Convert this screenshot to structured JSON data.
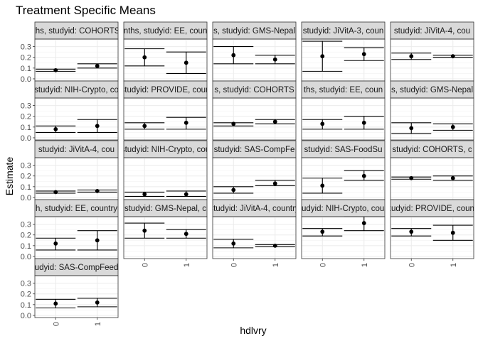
{
  "chart_data": {
    "type": "scatter",
    "title": "Treatment Specific Means",
    "xlabel": "hdlvry",
    "ylabel": "Estimate",
    "x_categories": [
      "0",
      "1"
    ],
    "y_ticks": [
      "0.0",
      "0.1",
      "0.2",
      "0.3"
    ],
    "ylim": [
      -0.02,
      0.37
    ],
    "grid": true,
    "panels": [
      {
        "strip": "ths, studyid: COHORTS",
        "points": [
          {
            "x": "0",
            "est": 0.08,
            "lo": 0.07,
            "hi": 0.09
          },
          {
            "x": "1",
            "est": 0.12,
            "lo": 0.1,
            "hi": 0.14
          }
        ]
      },
      {
        "strip": "nths, studyid: EE, coun",
        "points": [
          {
            "x": "0",
            "est": 0.2,
            "lo": 0.12,
            "hi": 0.28
          },
          {
            "x": "1",
            "est": 0.15,
            "lo": 0.05,
            "hi": 0.25
          }
        ]
      },
      {
        "strip": "s, studyid: GMS-Nepal",
        "points": [
          {
            "x": "0",
            "est": 0.22,
            "lo": 0.14,
            "hi": 0.3
          },
          {
            "x": "1",
            "est": 0.18,
            "lo": 0.14,
            "hi": 0.22
          }
        ]
      },
      {
        "strip": "studyid: JiVitA-3, coun",
        "points": [
          {
            "x": "0",
            "est": 0.21,
            "lo": 0.07,
            "hi": 0.35
          },
          {
            "x": "1",
            "est": 0.23,
            "lo": 0.17,
            "hi": 0.29
          }
        ]
      },
      {
        "strip": "studyid: JiVitA-4, cou",
        "points": [
          {
            "x": "0",
            "est": 0.21,
            "lo": 0.18,
            "hi": 0.24
          },
          {
            "x": "1",
            "est": 0.21,
            "lo": 0.2,
            "hi": 0.22
          }
        ]
      },
      {
        "strip": "studyid: NIH-Crypto, co",
        "points": [
          {
            "x": "0",
            "est": 0.08,
            "lo": 0.05,
            "hi": 0.11
          },
          {
            "x": "1",
            "est": 0.11,
            "lo": 0.05,
            "hi": 0.17
          }
        ]
      },
      {
        "strip": "studyid: PROVIDE, coun",
        "points": [
          {
            "x": "0",
            "est": 0.11,
            "lo": 0.08,
            "hi": 0.14
          },
          {
            "x": "1",
            "est": 0.14,
            "lo": 0.08,
            "hi": 0.19
          }
        ]
      },
      {
        "strip": "s, studyid: COHORTS",
        "points": [
          {
            "x": "0",
            "est": 0.13,
            "lo": 0.11,
            "hi": 0.14
          },
          {
            "x": "1",
            "est": 0.15,
            "lo": 0.13,
            "hi": 0.17
          }
        ]
      },
      {
        "strip": "ths, studyid: EE, coun",
        "points": [
          {
            "x": "0",
            "est": 0.13,
            "lo": 0.08,
            "hi": 0.17
          },
          {
            "x": "1",
            "est": 0.14,
            "lo": 0.08,
            "hi": 0.2
          }
        ]
      },
      {
        "strip": "s, studyid: GMS-Nepal",
        "points": [
          {
            "x": "0",
            "est": 0.09,
            "lo": 0.04,
            "hi": 0.14
          },
          {
            "x": "1",
            "est": 0.1,
            "lo": 0.07,
            "hi": 0.13
          }
        ]
      },
      {
        "strip": "studyid: JiVitA-4, cou",
        "points": [
          {
            "x": "0",
            "est": 0.05,
            "lo": 0.04,
            "hi": 0.06
          },
          {
            "x": "1",
            "est": 0.06,
            "lo": 0.05,
            "hi": 0.07
          }
        ]
      },
      {
        "strip": "studyid: NIH-Crypto, cou",
        "points": [
          {
            "x": "0",
            "est": 0.03,
            "lo": 0.01,
            "hi": 0.05
          },
          {
            "x": "1",
            "est": 0.03,
            "lo": 0.01,
            "hi": 0.06
          }
        ]
      },
      {
        "strip": "studyid: SAS-CompFe",
        "points": [
          {
            "x": "0",
            "est": 0.07,
            "lo": 0.04,
            "hi": 0.1
          },
          {
            "x": "1",
            "est": 0.13,
            "lo": 0.11,
            "hi": 0.16
          }
        ]
      },
      {
        "strip": "studyid: SAS-FoodSu",
        "points": [
          {
            "x": "0",
            "est": 0.11,
            "lo": 0.04,
            "hi": 0.18
          },
          {
            "x": "1",
            "est": 0.2,
            "lo": 0.16,
            "hi": 0.25
          }
        ]
      },
      {
        "strip": "studyid: COHORTS, c",
        "points": [
          {
            "x": "0",
            "est": 0.18,
            "lo": 0.17,
            "hi": 0.19
          },
          {
            "x": "1",
            "est": 0.18,
            "lo": 0.16,
            "hi": 0.2
          }
        ]
      },
      {
        "strip": "h, studyid: EE, country",
        "points": [
          {
            "x": "0",
            "est": 0.12,
            "lo": 0.06,
            "hi": 0.17
          },
          {
            "x": "1",
            "est": 0.15,
            "lo": 0.06,
            "hi": 0.24
          }
        ]
      },
      {
        "strip": "studyid: GMS-Nepal, c",
        "points": [
          {
            "x": "0",
            "est": 0.24,
            "lo": 0.17,
            "hi": 0.31
          },
          {
            "x": "1",
            "est": 0.21,
            "lo": 0.17,
            "hi": 0.25
          }
        ]
      },
      {
        "strip": "studyid: JiVitA-4, country",
        "points": [
          {
            "x": "0",
            "est": 0.12,
            "lo": 0.08,
            "hi": 0.16
          },
          {
            "x": "1",
            "est": 0.1,
            "lo": 0.09,
            "hi": 0.11
          }
        ]
      },
      {
        "strip": "studyid: NIH-Crypto, count",
        "points": [
          {
            "x": "0",
            "est": 0.23,
            "lo": 0.19,
            "hi": 0.26
          },
          {
            "x": "1",
            "est": 0.31,
            "lo": 0.24,
            "hi": 0.37
          }
        ]
      },
      {
        "strip": "studyid: PROVIDE, countr",
        "points": [
          {
            "x": "0",
            "est": 0.23,
            "lo": 0.19,
            "hi": 0.26
          },
          {
            "x": "1",
            "est": 0.22,
            "lo": 0.15,
            "hi": 0.29
          }
        ]
      },
      {
        "strip": "udyid: SAS-CompFeed",
        "points": [
          {
            "x": "0",
            "est": 0.11,
            "lo": 0.07,
            "hi": 0.15
          },
          {
            "x": "1",
            "est": 0.12,
            "lo": 0.08,
            "hi": 0.16
          }
        ]
      }
    ]
  }
}
